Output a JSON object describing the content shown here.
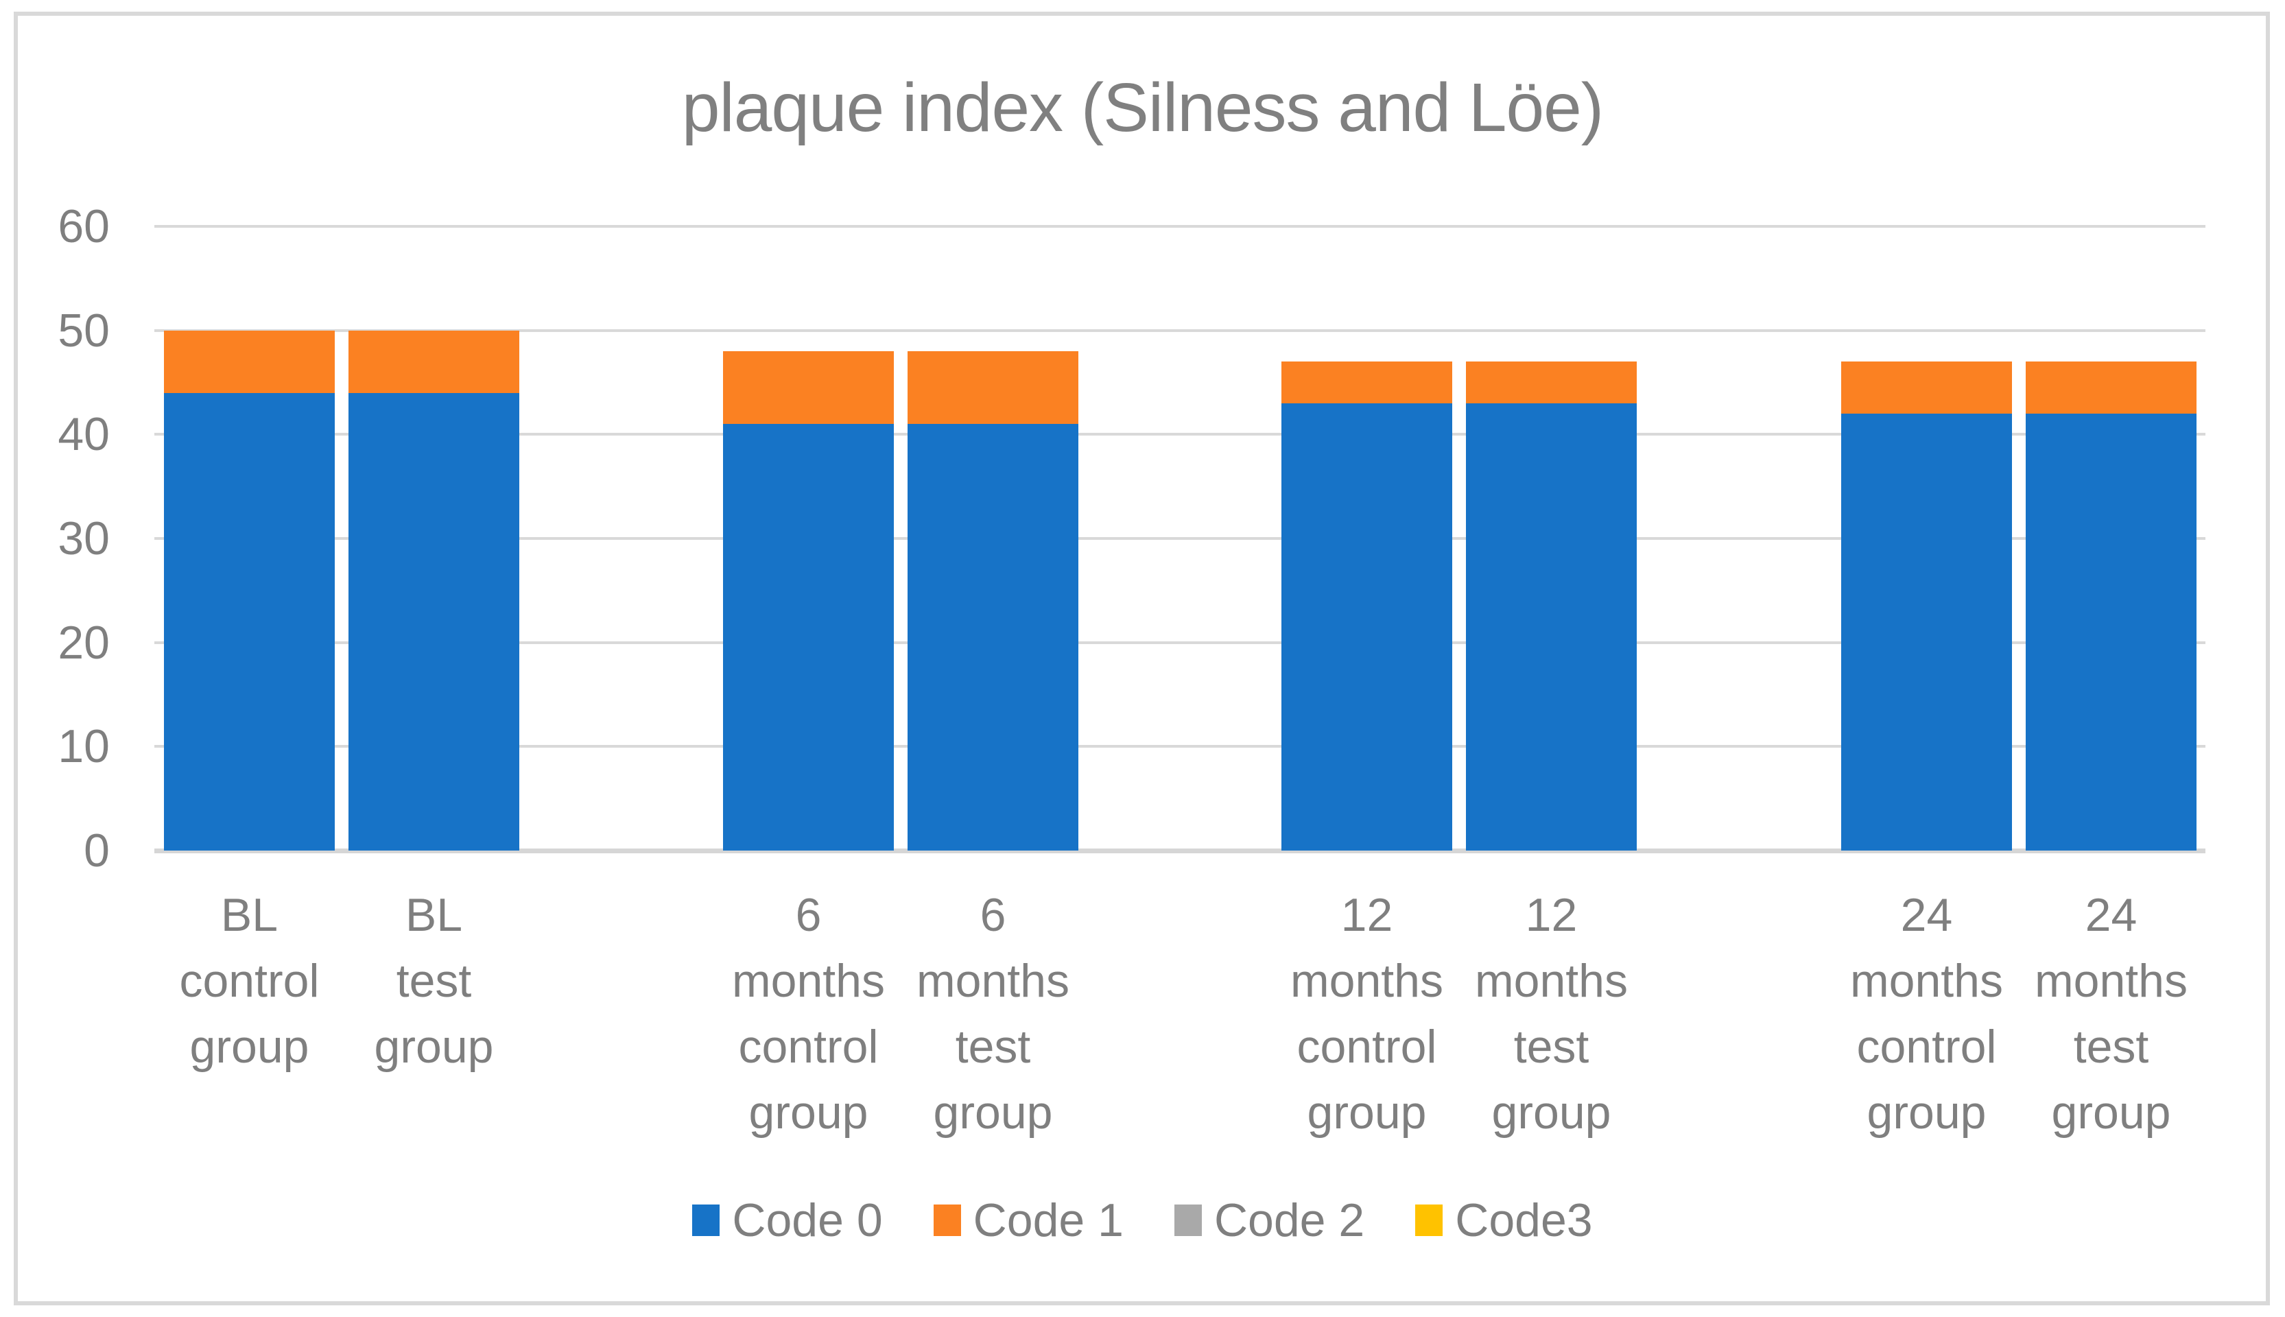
{
  "title": "plaque index (Silness and Löe)",
  "colors": {
    "code0": "#1773c7",
    "code1": "#fb8122",
    "code2": "#a9a9a9",
    "code3": "#ffc200",
    "gridline": "#d9d9d9",
    "text": "#7f7f7f",
    "title_text": "#808080"
  },
  "chart_data": {
    "type": "bar",
    "stacked": true,
    "title": "plaque index (Silness and Löe)",
    "xlabel": "",
    "ylabel": "",
    "ylim": [
      0,
      60
    ],
    "yticks": [
      0,
      10,
      20,
      30,
      40,
      50,
      60
    ],
    "grid": true,
    "legend_position": "bottom",
    "categories": [
      "BL control group",
      "BL test group",
      "6 months control group",
      "6 months test group",
      "12 months control group",
      "12 months test group",
      "24 months control group",
      "24 months test group"
    ],
    "category_label_lines": [
      [
        "BL",
        "control",
        "group"
      ],
      [
        "BL",
        "test",
        "group"
      ],
      [
        "6",
        "months",
        "control",
        "group"
      ],
      [
        "6",
        "months",
        "test",
        "group"
      ],
      [
        "12",
        "months",
        "control",
        "group"
      ],
      [
        "12",
        "months",
        "test",
        "group"
      ],
      [
        "24",
        "months",
        "control",
        "group"
      ],
      [
        "24",
        "months",
        "test",
        "group"
      ]
    ],
    "series": [
      {
        "name": "Code 0",
        "color": "#1773c7",
        "values": [
          44,
          44,
          41,
          41,
          43,
          43,
          42,
          42
        ]
      },
      {
        "name": "Code 1",
        "color": "#fb8122",
        "values": [
          6,
          6,
          7,
          7,
          4,
          4,
          5,
          5
        ]
      },
      {
        "name": "Code 2",
        "color": "#a9a9a9",
        "values": [
          0,
          0,
          0,
          0,
          0,
          0,
          0,
          0
        ]
      },
      {
        "name": "Code3",
        "color": "#ffc200",
        "values": [
          0,
          0,
          0,
          0,
          0,
          0,
          0,
          0
        ]
      }
    ]
  }
}
